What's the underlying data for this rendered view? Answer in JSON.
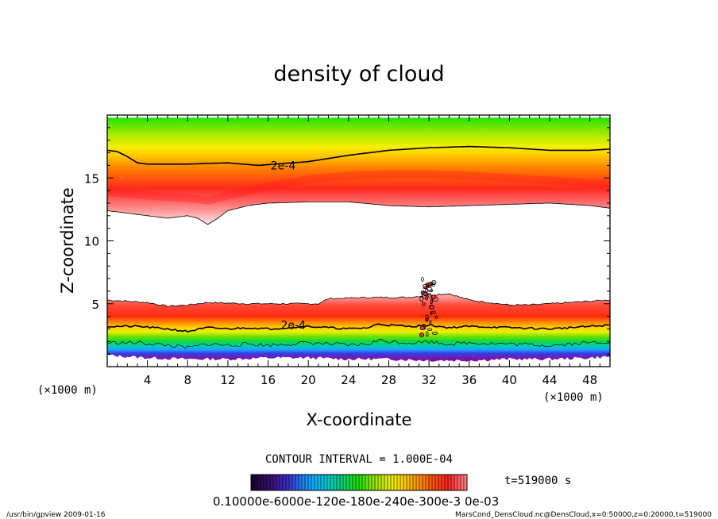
{
  "chart_data": {
    "type": "heatmap",
    "title": "density of cloud",
    "xlabel": "X-coordinate",
    "ylabel": "Z-coordinate",
    "x_unit_label": "(×1000 m)",
    "x_unit_label_right": "(×1000 m)",
    "xlim": [
      0,
      50
    ],
    "ylim": [
      0,
      20
    ],
    "x_ticks": [
      4,
      8,
      12,
      16,
      20,
      24,
      28,
      32,
      36,
      40,
      44,
      48
    ],
    "y_ticks": [
      5,
      10,
      15
    ],
    "upper_layer": {
      "base": [
        [
          0,
          12.4
        ],
        [
          4,
          12
        ],
        [
          6,
          11.8
        ],
        [
          8,
          12
        ],
        [
          9,
          11.8
        ],
        [
          10,
          11.3
        ],
        [
          11,
          11.8
        ],
        [
          12,
          12.4
        ],
        [
          14,
          12.8
        ],
        [
          16,
          13
        ],
        [
          20,
          13.1
        ],
        [
          24,
          13.1
        ],
        [
          28,
          12.8
        ],
        [
          32,
          12.7
        ],
        [
          36,
          12.8
        ],
        [
          40,
          12.9
        ],
        [
          44,
          13
        ],
        [
          48,
          12.8
        ],
        [
          50,
          12.6
        ]
      ],
      "peak": [
        [
          0,
          13.9
        ],
        [
          4,
          13.6
        ],
        [
          8,
          13.4
        ],
        [
          10,
          13.2
        ],
        [
          12,
          13.6
        ],
        [
          16,
          14.3
        ],
        [
          20,
          14.9
        ],
        [
          24,
          15.2
        ],
        [
          28,
          15.3
        ],
        [
          32,
          15.3
        ],
        [
          36,
          15.2
        ],
        [
          40,
          15
        ],
        [
          44,
          14.8
        ],
        [
          48,
          14.6
        ],
        [
          50,
          14.5
        ]
      ],
      "top": [
        [
          0,
          19.8
        ],
        [
          50,
          19.8
        ]
      ],
      "contour_2e-4": [
        [
          0,
          17.2
        ],
        [
          1,
          17.1
        ],
        [
          2,
          16.7
        ],
        [
          3,
          16.2
        ],
        [
          4,
          16.1
        ],
        [
          8,
          16.1
        ],
        [
          12,
          16.2
        ],
        [
          15,
          16
        ],
        [
          20,
          16.3
        ],
        [
          24,
          16.8
        ],
        [
          28,
          17.2
        ],
        [
          32,
          17.4
        ],
        [
          36,
          17.5
        ],
        [
          40,
          17.4
        ],
        [
          44,
          17.2
        ],
        [
          48,
          17.2
        ],
        [
          50,
          17.3
        ]
      ]
    },
    "lower_layer": {
      "top": [
        [
          0,
          5.3
        ],
        [
          2,
          5.2
        ],
        [
          4,
          5.1
        ],
        [
          6,
          4.8
        ],
        [
          8,
          4.9
        ],
        [
          10,
          5.1
        ],
        [
          14,
          5.0
        ],
        [
          18,
          5.0
        ],
        [
          21,
          5.0
        ],
        [
          22,
          5.4
        ],
        [
          26,
          5.5
        ],
        [
          30,
          5.5
        ],
        [
          32,
          5.7
        ],
        [
          34,
          5.8
        ],
        [
          36,
          5.3
        ],
        [
          40,
          4.9
        ],
        [
          42,
          4.9
        ],
        [
          44,
          5.0
        ],
        [
          46,
          5.1
        ],
        [
          50,
          5.3
        ]
      ],
      "peak": [
        [
          0,
          4.4
        ],
        [
          4,
          4.2
        ],
        [
          8,
          3.8
        ],
        [
          12,
          4.0
        ],
        [
          16,
          4.0
        ],
        [
          20,
          4.1
        ],
        [
          24,
          4.2
        ],
        [
          28,
          4.2
        ],
        [
          32,
          4.3
        ],
        [
          36,
          4.2
        ],
        [
          40,
          4.0
        ],
        [
          44,
          3.9
        ],
        [
          48,
          3.9
        ],
        [
          50,
          3.9
        ]
      ],
      "contour_2e-4": [
        [
          0,
          3.2
        ],
        [
          3,
          3.2
        ],
        [
          6,
          3.0
        ],
        [
          8,
          2.8
        ],
        [
          10,
          3.1
        ],
        [
          12,
          3.0
        ],
        [
          14,
          3.1
        ],
        [
          16,
          3.0
        ],
        [
          18,
          3.1
        ],
        [
          20,
          3.2
        ],
        [
          22,
          3.1
        ],
        [
          24,
          3.0
        ],
        [
          26,
          3.1
        ],
        [
          27,
          3.4
        ],
        [
          28,
          3.3
        ],
        [
          30,
          3.2
        ],
        [
          32,
          3.3
        ],
        [
          34,
          3.1
        ],
        [
          36,
          3.2
        ],
        [
          40,
          3.1
        ],
        [
          44,
          3.0
        ],
        [
          48,
          3.2
        ],
        [
          50,
          3.3
        ]
      ],
      "base": [
        [
          0,
          0.9
        ],
        [
          2,
          0.8
        ],
        [
          4,
          0.7
        ],
        [
          8,
          0.6
        ],
        [
          12,
          0.6
        ],
        [
          16,
          0.7
        ],
        [
          20,
          0.7
        ],
        [
          24,
          0.6
        ],
        [
          28,
          0.6
        ],
        [
          32,
          0.5
        ],
        [
          36,
          0.5
        ],
        [
          40,
          0.6
        ],
        [
          44,
          0.6
        ],
        [
          48,
          0.7
        ],
        [
          50,
          0.8
        ]
      ],
      "plume_x": 32
    },
    "contour_labels": [
      {
        "text": "2e-4",
        "x": 17.5,
        "z": 16.0
      },
      {
        "text": "2e-4",
        "x": 18.5,
        "z": 3.3
      }
    ],
    "contour_interval_text": "CONTOUR INTERVAL = 1.000E-04",
    "colorbar": {
      "min": 0.0001,
      "max": 0.0007,
      "tick_text": "0.10000e-6000e-120e-180e-240e-300e-3",
      "tick_text_end": "0e-03",
      "colors": [
        "#1a0033",
        "#3a1070",
        "#3a2fd0",
        "#1e90ff",
        "#00c8e0",
        "#00d080",
        "#22e000",
        "#a8e800",
        "#f8f000",
        "#ffb000",
        "#ff6000",
        "#ff2020",
        "#ff8080"
      ]
    },
    "time_label": "t=519000  s"
  },
  "footer": {
    "left": "/usr/bin/gpview   2009-01-16",
    "right": "MarsCond_DensCloud.nc@DensCloud,x=0:50000,z=0:20000,t=519000"
  }
}
